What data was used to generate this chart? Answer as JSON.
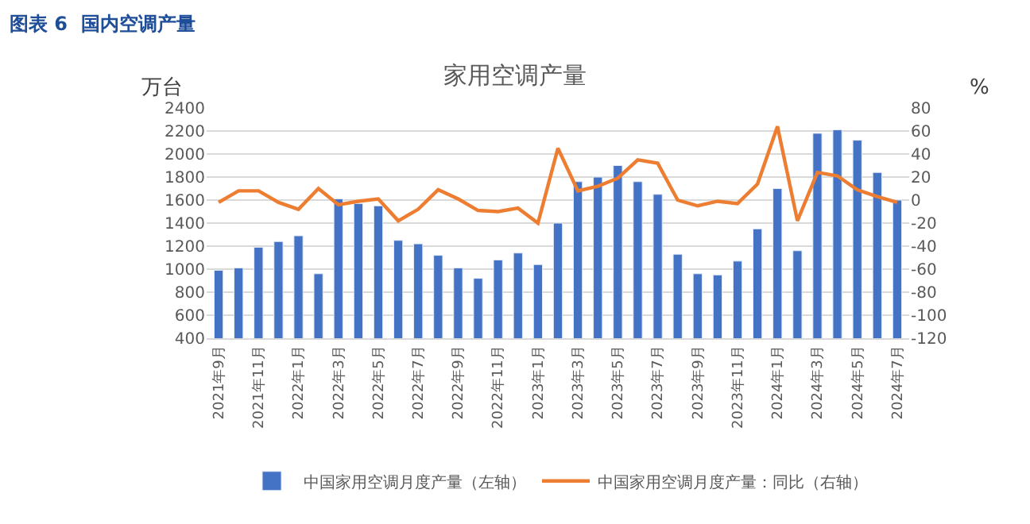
{
  "chart_data": {
    "type": "bar",
    "title": "家用空调产量",
    "ylabel": "万台",
    "y2label": "%",
    "annotations": [
      "图表 6  国内空调产量"
    ],
    "categories": [
      "2021年9月",
      null,
      "2021年11月",
      null,
      "2022年1月",
      null,
      "2022年3月",
      null,
      "2022年5月",
      null,
      "2022年7月",
      null,
      "2022年9月",
      null,
      "2022年11月",
      null,
      "2023年1月",
      null,
      "2023年3月",
      null,
      "2023年5月",
      null,
      "2023年7月",
      null,
      "2023年9月",
      null,
      "2023年11月",
      null,
      "2024年1月",
      null,
      "2024年3月",
      null,
      "2024年5月",
      null,
      "2024年7月"
    ],
    "series": [
      {
        "name": "中国家用空调月度产量（左轴）",
        "color": "#4472c4",
        "values": [
          990,
          1010,
          1190,
          1240,
          1290,
          960,
          1610,
          1570,
          1550,
          1250,
          1220,
          1120,
          1010,
          920,
          1080,
          1140,
          1040,
          1400,
          1760,
          1800,
          1900,
          1760,
          1650,
          1130,
          960,
          950,
          1070,
          1350,
          1700,
          1160,
          2180,
          2210,
          2120,
          1840,
          1600
        ]
      },
      {
        "name": "中国家用空调月度产量：同比（右轴）",
        "type": "line",
        "axis": "y2",
        "color": "#ed7d31",
        "values": [
          -2,
          8,
          8,
          -2,
          -8,
          10,
          -4,
          -1,
          1,
          -18,
          -8,
          9,
          1,
          -9,
          -10,
          -7,
          -20,
          45,
          8,
          12,
          19,
          35,
          32,
          0,
          -5,
          -1,
          -3,
          14,
          64,
          -18,
          24,
          21,
          9,
          3,
          -2
        ]
      }
    ],
    "ylim": [
      400,
      2400
    ],
    "yticks": [
      400,
      600,
      800,
      1000,
      1200,
      1400,
      1600,
      1800,
      2000,
      2200,
      2400
    ],
    "y2lim": [
      -120,
      80
    ],
    "y2ticks": [
      -120,
      -100,
      -80,
      -60,
      -40,
      -20,
      0,
      20,
      40,
      60,
      80
    ],
    "grid": "y",
    "legend": "bottom",
    "marker": "none",
    "line_style": "solid"
  }
}
